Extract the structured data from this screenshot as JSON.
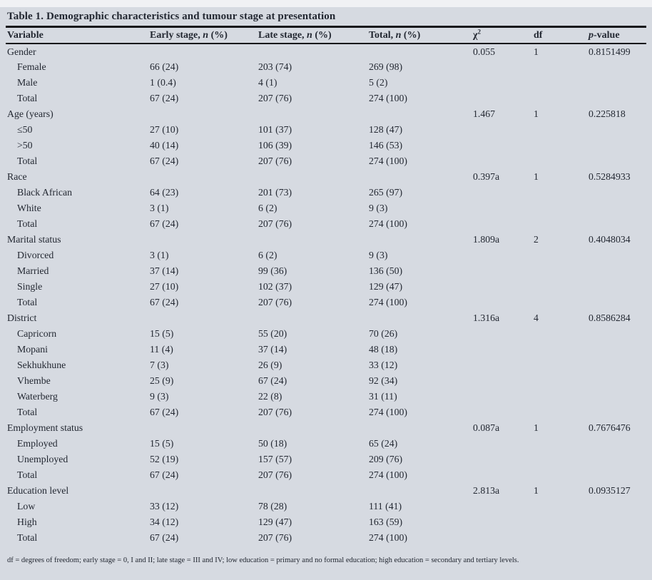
{
  "page": {
    "background_color": "#d6dae1",
    "top_strip_color": "#f0f1f4",
    "text_color": "#232832",
    "rule_color": "#15161a"
  },
  "table": {
    "title": "Table 1. Demographic characteristics and tumour stage at presentation",
    "header": {
      "variable": "Variable",
      "early_prefix": "Early stage, ",
      "early_n": "n",
      "early_suffix": " (%)",
      "late_prefix": "Late stage, ",
      "late_n": "n",
      "late_suffix": " (%)",
      "total_prefix": "Total, ",
      "total_n": "n",
      "total_suffix": " (%)",
      "chi_base": "χ",
      "chi_sup": "2",
      "df": "df",
      "p_italic": "p",
      "p_suffix": "-value"
    },
    "rows": [
      {
        "label": "Gender",
        "indent": false,
        "early": "",
        "late": "",
        "total": "",
        "chi2": "0.055",
        "df": "1",
        "p": "0.8151499"
      },
      {
        "label": "Female",
        "indent": true,
        "early": "66 (24)",
        "late": "203 (74)",
        "total": "269 (98)",
        "chi2": "",
        "df": "",
        "p": ""
      },
      {
        "label": "Male",
        "indent": true,
        "early": "1 (0.4)",
        "late": "4 (1)",
        "total": "5 (2)",
        "chi2": "",
        "df": "",
        "p": ""
      },
      {
        "label": "Total",
        "indent": true,
        "early": "67 (24)",
        "late": "207 (76)",
        "total": "274 (100)",
        "chi2": "",
        "df": "",
        "p": ""
      },
      {
        "label": "Age (years)",
        "indent": false,
        "early": "",
        "late": "",
        "total": "",
        "chi2": "1.467",
        "df": "1",
        "p": "0.225818"
      },
      {
        "label": "≤50",
        "indent": true,
        "early": "27 (10)",
        "late": "101 (37)",
        "total": "128 (47)",
        "chi2": "",
        "df": "",
        "p": ""
      },
      {
        "label": ">50",
        "indent": true,
        "early": "40 (14)",
        "late": "106 (39)",
        "total": "146 (53)",
        "chi2": "",
        "df": "",
        "p": ""
      },
      {
        "label": "Total",
        "indent": true,
        "early": "67 (24)",
        "late": "207 (76)",
        "total": "274 (100)",
        "chi2": "",
        "df": "",
        "p": ""
      },
      {
        "label": "Race",
        "indent": false,
        "early": "",
        "late": "",
        "total": "",
        "chi2": "0.397a",
        "df": "1",
        "p": "0.5284933"
      },
      {
        "label": "Black African",
        "indent": true,
        "early": "64 (23)",
        "late": "201 (73)",
        "total": "265 (97)",
        "chi2": "",
        "df": "",
        "p": ""
      },
      {
        "label": "White",
        "indent": true,
        "early": "3 (1)",
        "late": "6 (2)",
        "total": "9 (3)",
        "chi2": "",
        "df": "",
        "p": ""
      },
      {
        "label": "Total",
        "indent": true,
        "early": "67 (24)",
        "late": "207 (76)",
        "total": "274 (100)",
        "chi2": "",
        "df": "",
        "p": ""
      },
      {
        "label": "Marital status",
        "indent": false,
        "early": "",
        "late": "",
        "total": "",
        "chi2": "1.809a",
        "df": "2",
        "p": "0.4048034"
      },
      {
        "label": "Divorced",
        "indent": true,
        "early": "3 (1)",
        "late": "6 (2)",
        "total": "9 (3)",
        "chi2": "",
        "df": "",
        "p": ""
      },
      {
        "label": "Married",
        "indent": true,
        "early": "37 (14)",
        "late": "99 (36)",
        "total": "136 (50)",
        "chi2": "",
        "df": "",
        "p": ""
      },
      {
        "label": "Single",
        "indent": true,
        "early": "27 (10)",
        "late": "102 (37)",
        "total": "129 (47)",
        "chi2": "",
        "df": "",
        "p": ""
      },
      {
        "label": "Total",
        "indent": true,
        "early": "67 (24)",
        "late": "207 (76)",
        "total": "274 (100)",
        "chi2": "",
        "df": "",
        "p": ""
      },
      {
        "label": "District",
        "indent": false,
        "early": "",
        "late": "",
        "total": "",
        "chi2": "1.316a",
        "df": "4",
        "p": "0.8586284"
      },
      {
        "label": "Capricorn",
        "indent": true,
        "early": "15 (5)",
        "late": "55 (20)",
        "total": "70 (26)",
        "chi2": "",
        "df": "",
        "p": ""
      },
      {
        "label": "Mopani",
        "indent": true,
        "early": "11 (4)",
        "late": "37 (14)",
        "total": "48 (18)",
        "chi2": "",
        "df": "",
        "p": ""
      },
      {
        "label": "Sekhukhune",
        "indent": true,
        "early": "7 (3)",
        "late": "26 (9)",
        "total": "33 (12)",
        "chi2": "",
        "df": "",
        "p": ""
      },
      {
        "label": "Vhembe",
        "indent": true,
        "early": "25 (9)",
        "late": "67 (24)",
        "total": "92 (34)",
        "chi2": "",
        "df": "",
        "p": ""
      },
      {
        "label": "Waterberg",
        "indent": true,
        "early": "9 (3)",
        "late": "22 (8)",
        "total": "31 (11)",
        "chi2": "",
        "df": "",
        "p": ""
      },
      {
        "label": "Total",
        "indent": true,
        "early": "67 (24)",
        "late": "207 (76)",
        "total": "274 (100)",
        "chi2": "",
        "df": "",
        "p": ""
      },
      {
        "label": "Employment status",
        "indent": false,
        "early": "",
        "late": "",
        "total": "",
        "chi2": "0.087a",
        "df": "1",
        "p": "0.7676476"
      },
      {
        "label": "Employed",
        "indent": true,
        "early": "15 (5)",
        "late": "50 (18)",
        "total": "65 (24)",
        "chi2": "",
        "df": "",
        "p": ""
      },
      {
        "label": "Unemployed",
        "indent": true,
        "early": "52 (19)",
        "late": "157 (57)",
        "total": "209 (76)",
        "chi2": "",
        "df": "",
        "p": ""
      },
      {
        "label": "Total",
        "indent": true,
        "early": "67 (24)",
        "late": "207 (76)",
        "total": "274 (100)",
        "chi2": "",
        "df": "",
        "p": ""
      },
      {
        "label": "Education level",
        "indent": false,
        "early": "",
        "late": "",
        "total": "",
        "chi2": "2.813a",
        "df": "1",
        "p": "0.0935127"
      },
      {
        "label": "Low",
        "indent": true,
        "early": "33 (12)",
        "late": "78 (28)",
        "total": "111 (41)",
        "chi2": "",
        "df": "",
        "p": ""
      },
      {
        "label": "High",
        "indent": true,
        "early": "34 (12)",
        "late": "129 (47)",
        "total": "163 (59)",
        "chi2": "",
        "df": "",
        "p": ""
      },
      {
        "label": "Total",
        "indent": true,
        "early": "67 (24)",
        "late": "207 (76)",
        "total": "274 (100)",
        "chi2": "",
        "df": "",
        "p": ""
      }
    ],
    "footnote": "df = degrees of freedom; early stage = 0, I and II; late stage = III and IV; low education = primary and no formal education; high education = secondary and tertiary levels."
  }
}
